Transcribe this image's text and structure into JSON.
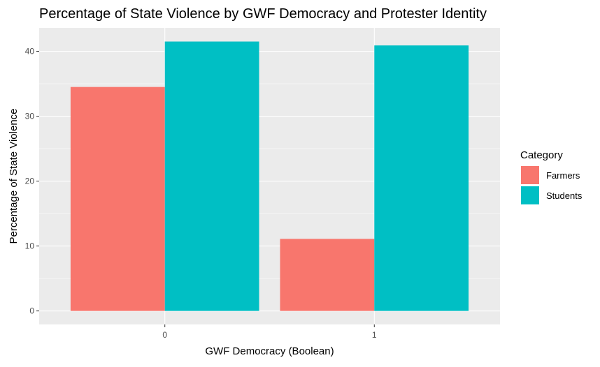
{
  "chart_data": {
    "type": "bar",
    "title": "Percentage of State Violence by GWF Democracy and Protester Identity",
    "xlabel": "GWF Democracy (Boolean)",
    "ylabel": "Percentage of State Violence",
    "categories": [
      "0",
      "1"
    ],
    "series": [
      {
        "name": "Farmers",
        "color": "#F8766D",
        "values": [
          34.5,
          11.1
        ]
      },
      {
        "name": "Students",
        "color": "#00BFC4",
        "values": [
          41.5,
          40.9
        ]
      }
    ],
    "ylim": [
      -2.08,
      43.6
    ],
    "yticks": [
      0,
      10,
      20,
      30,
      40
    ],
    "grid": true,
    "panel_background": "#EBEBEB",
    "legend": {
      "title": "Category",
      "position": "right"
    }
  }
}
